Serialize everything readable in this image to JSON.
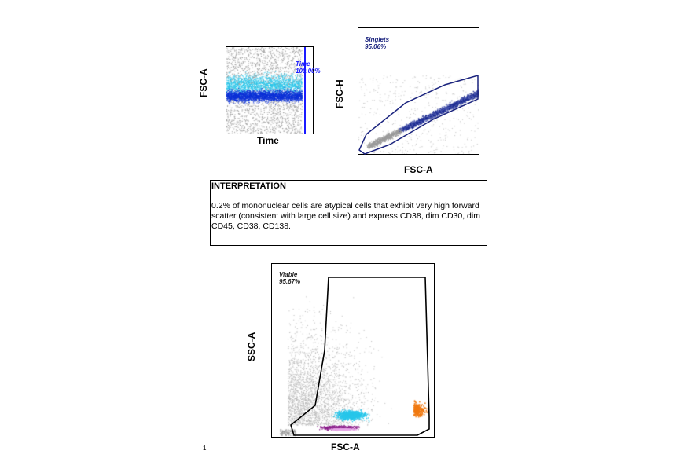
{
  "plots": {
    "time": {
      "xlabel": "Time",
      "ylabel": "FSC-A",
      "gate_name": "Time",
      "gate_pct": "100.00%"
    },
    "singlets": {
      "xlabel": "FSC-A",
      "ylabel": "FSC-H",
      "gate_name": "Singlets",
      "gate_pct": "95.06%"
    },
    "viable": {
      "xlabel": "FSC-A",
      "ylabel": "SSC-A",
      "gate_name": "Viable",
      "gate_pct": "95.67%"
    }
  },
  "interpretation": {
    "title": "INTERPRETATION",
    "text": "0.2% of mononuclear cells are atypical cells that exhibit very high forward scatter (consistent with large cell size) and express CD38, dim CD30, dim CD45, CD38, CD138."
  },
  "page_number": "1",
  "colors": {
    "gate_blue": "#1a237e",
    "time_gate": "#1a1aff",
    "events_blue": "#0a2fd6",
    "events_cyan": "#27c6ea",
    "events_grey": "#9a9a9a",
    "events_orange": "#f07a12",
    "events_purple": "#8a1f8a"
  }
}
